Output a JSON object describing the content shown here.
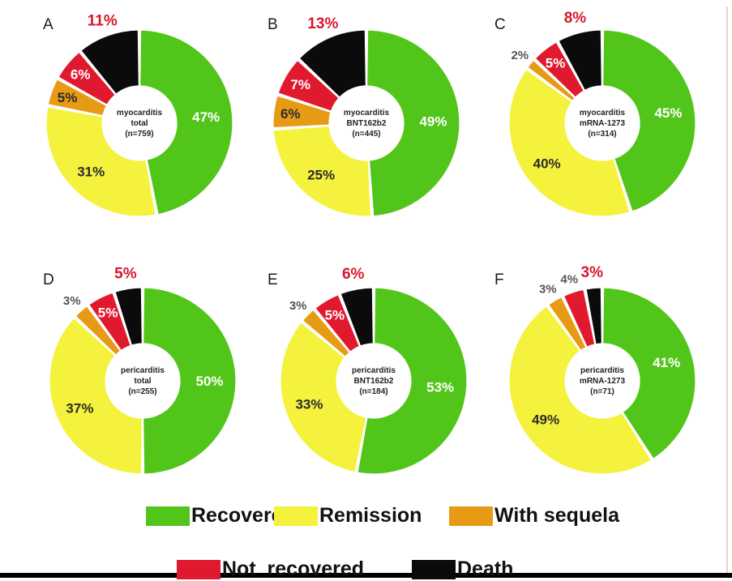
{
  "legend": [
    {
      "label": "Recovered",
      "color": "#52c51a"
    },
    {
      "label": "Remission",
      "color": "#f4f23c"
    },
    {
      "label": "With sequela",
      "color": "#e79a14"
    },
    {
      "label": "Not  recovered",
      "color": "#e0192f"
    },
    {
      "label": "Death",
      "color": "#0b0b0b"
    }
  ],
  "chart_data": [
    {
      "type": "pie",
      "panel": "A",
      "center_label": [
        "myocarditis",
        "total",
        "(n=759)"
      ],
      "categories": [
        "Recovered",
        "Remission",
        "With sequela",
        "Not recovered",
        "Death"
      ],
      "values": [
        47,
        31,
        5,
        6,
        11
      ],
      "labels": [
        "47%",
        "31%",
        "5%",
        "6%",
        "11%"
      ]
    },
    {
      "type": "pie",
      "panel": "B",
      "center_label": [
        "myocarditis",
        "BNT162b2",
        "(n=445)"
      ],
      "categories": [
        "Recovered",
        "Remission",
        "With sequela",
        "Not recovered",
        "Death"
      ],
      "values": [
        49,
        25,
        6,
        7,
        13
      ],
      "labels": [
        "49%",
        "25%",
        "6%",
        "7%",
        "13%"
      ]
    },
    {
      "type": "pie",
      "panel": "C",
      "center_label": [
        "myocarditis",
        "mRNA-1273",
        "(n=314)"
      ],
      "categories": [
        "Recovered",
        "Remission",
        "With sequela",
        "Not recovered",
        "Death"
      ],
      "values": [
        45,
        40,
        2,
        5,
        8
      ],
      "labels": [
        "45%",
        "40%",
        "2%",
        "5%",
        "8%"
      ]
    },
    {
      "type": "pie",
      "panel": "D",
      "center_label": [
        "pericarditis",
        "total",
        "(n=255)"
      ],
      "categories": [
        "Recovered",
        "Remission",
        "With sequela",
        "Not recovered",
        "Death"
      ],
      "values": [
        50,
        37,
        3,
        5,
        5
      ],
      "labels": [
        "50%",
        "37%",
        "3%",
        "5%",
        "5%"
      ]
    },
    {
      "type": "pie",
      "panel": "E",
      "center_label": [
        "pericarditis",
        "BNT162b2",
        "(n=184)"
      ],
      "categories": [
        "Recovered",
        "Remission",
        "With sequela",
        "Not recovered",
        "Death"
      ],
      "values": [
        53,
        33,
        3,
        5,
        6
      ],
      "labels": [
        "53%",
        "33%",
        "3%",
        "5%",
        "6%"
      ]
    },
    {
      "type": "pie",
      "panel": "F",
      "center_label": [
        "pericarditis",
        "mRNA-1273",
        "(n=71)"
      ],
      "categories": [
        "Recovered",
        "Remission",
        "With sequela",
        "Not recovered",
        "Death"
      ],
      "values": [
        41,
        49,
        3,
        4,
        3
      ],
      "labels": [
        "41%",
        "49%",
        "3%",
        "4%",
        "3%"
      ]
    }
  ]
}
